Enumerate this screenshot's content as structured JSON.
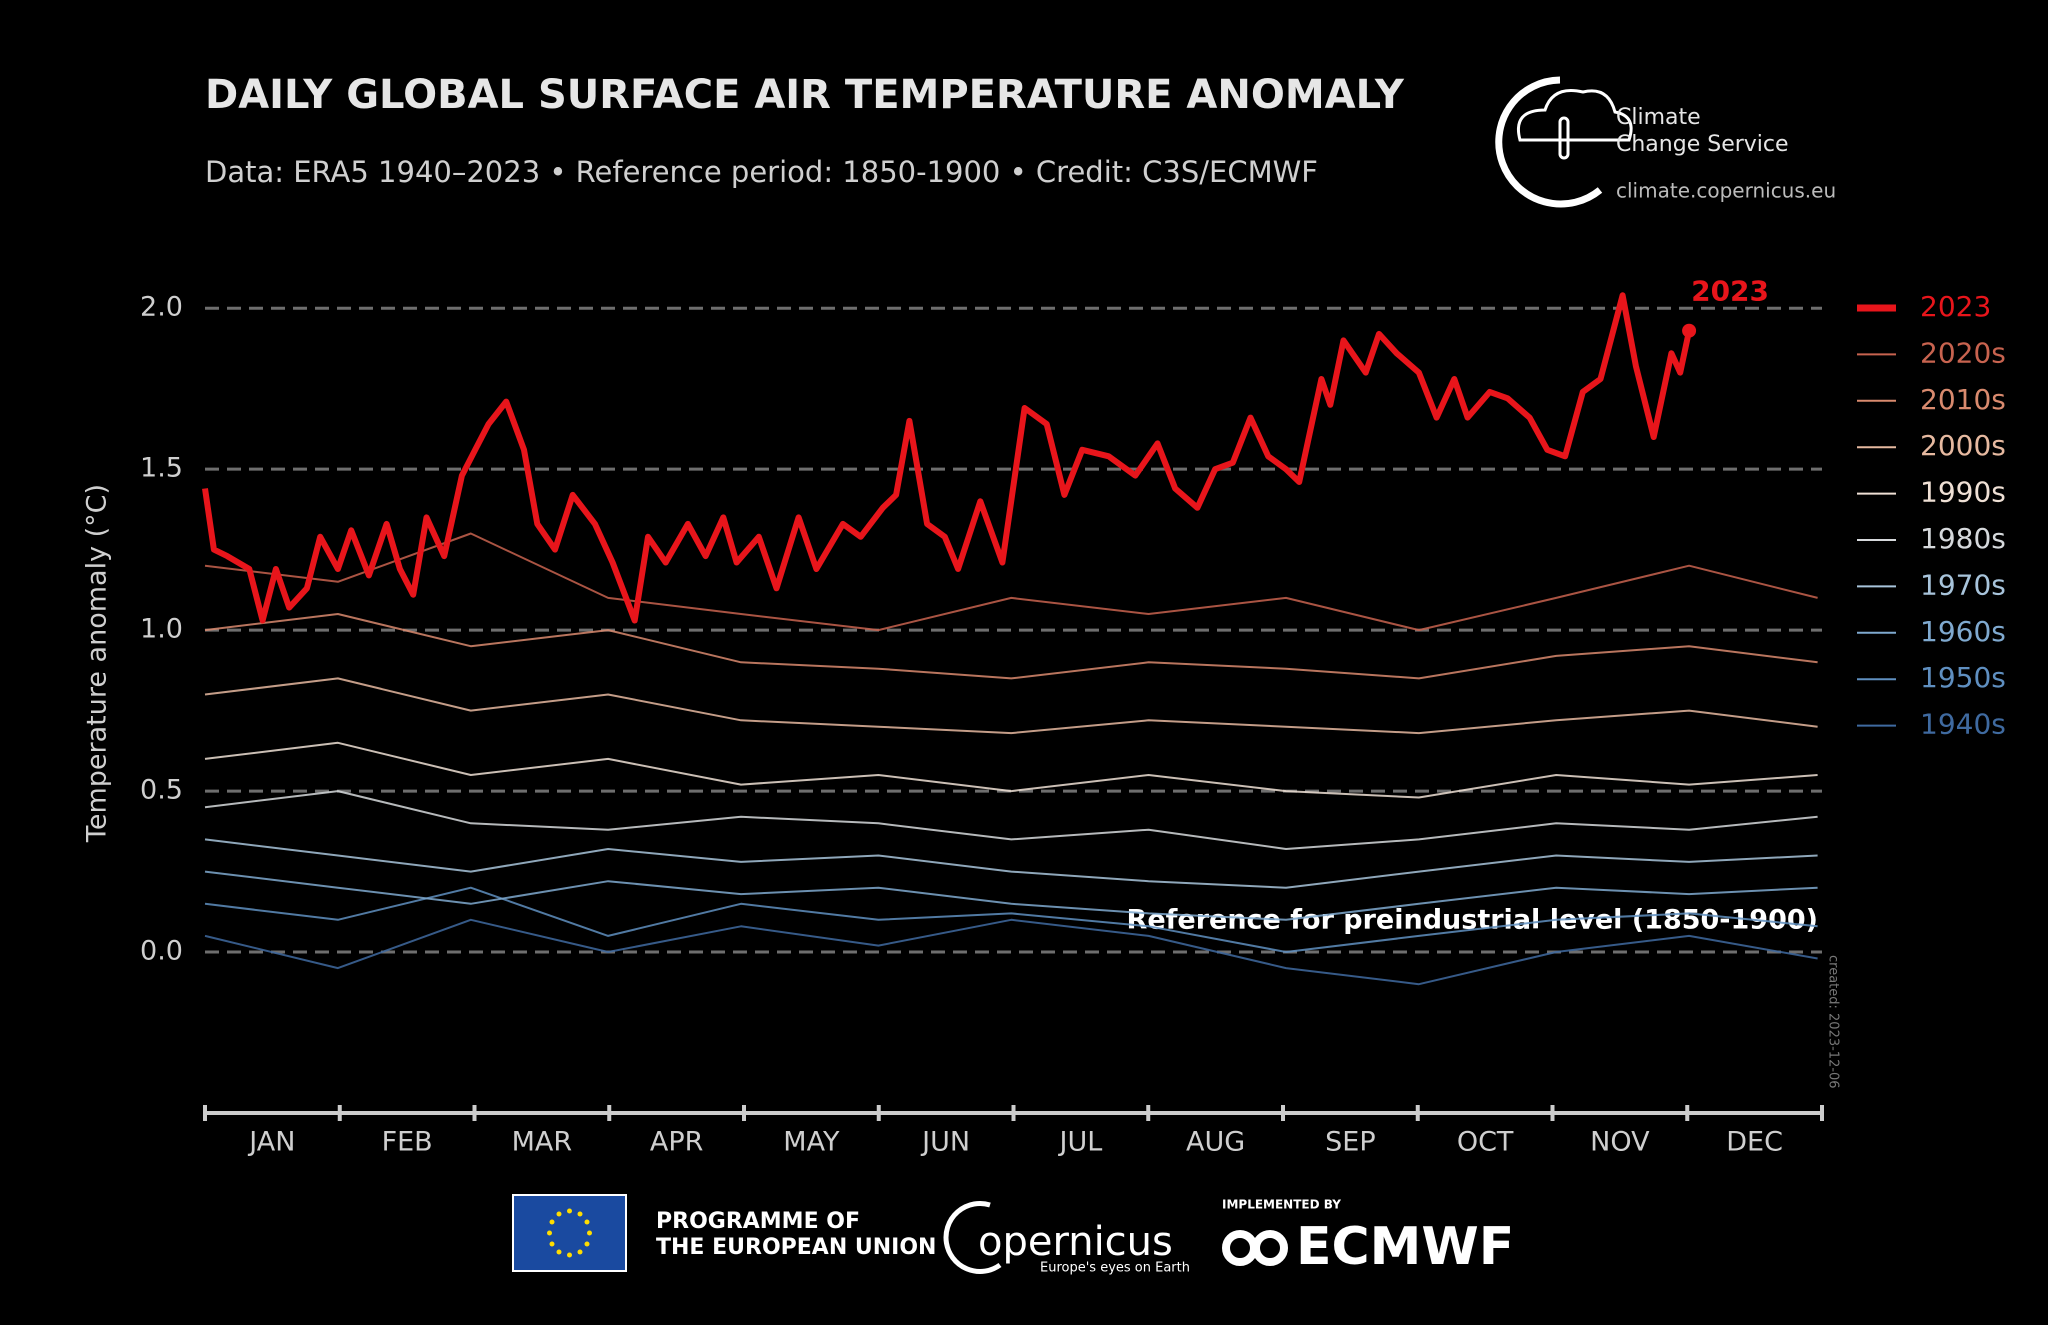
{
  "header": {
    "logo_line1": "Climate",
    "logo_line2": "Change Service",
    "logo_url": "climate.copernicus.eu"
  },
  "chart_data": {
    "type": "line",
    "title": "DAILY GLOBAL SURFACE AIR TEMPERATURE ANOMALY",
    "subtitle": "Data: ERA5 1940–2023 • Reference period: 1850-1900 • Credit: C3S/ECMWF",
    "y_label": "Temperature anomaly (°C)",
    "categories": [
      "JAN",
      "FEB",
      "MAR",
      "APR",
      "MAY",
      "JUN",
      "JUL",
      "AUG",
      "SEP",
      "OCT",
      "NOV",
      "DEC"
    ],
    "xlim": [
      0,
      365
    ],
    "ylim": [
      -0.5,
      2.1
    ],
    "yticks": [
      {
        "value": 0,
        "label": "0.0"
      },
      0.5,
      {
        "value": 1,
        "label": "1.0"
      },
      1.5,
      {
        "value": 2,
        "label": "2.0"
      }
    ],
    "grid": true,
    "legend": "right",
    "annotations": {
      "series_label": "2023",
      "reference": "Reference for preindustrial level (1850-1900)",
      "created": "created: 2023-12-06"
    },
    "series": [
      {
        "name": "2023",
        "color": "#e8151b",
        "x": [
          0,
          2,
          5,
          10,
          13,
          16,
          19,
          23,
          26,
          30,
          33,
          37,
          41,
          44,
          47,
          50,
          54,
          58,
          61,
          64,
          68,
          72,
          75,
          79,
          83,
          88,
          92,
          97,
          100,
          104,
          109,
          113,
          117,
          120,
          125,
          129,
          134,
          138,
          144,
          148,
          153,
          156,
          159,
          163,
          167,
          170,
          175,
          180,
          185,
          190,
          194,
          198,
          204,
          210,
          215,
          219,
          224,
          228,
          232,
          236,
          240,
          244,
          247,
          252,
          254,
          257,
          262,
          265,
          269,
          274,
          278,
          282,
          285,
          290,
          294,
          299,
          303,
          307,
          311,
          315,
          320,
          323,
          327,
          331,
          333,
          335
        ],
        "values": [
          1.44,
          1.25,
          1.23,
          1.19,
          1.03,
          1.19,
          1.07,
          1.13,
          1.29,
          1.19,
          1.31,
          1.17,
          1.33,
          1.19,
          1.11,
          1.35,
          1.23,
          1.48,
          1.56,
          1.64,
          1.71,
          1.56,
          1.33,
          1.25,
          1.42,
          1.33,
          1.21,
          1.03,
          1.29,
          1.21,
          1.33,
          1.23,
          1.35,
          1.21,
          1.29,
          1.13,
          1.35,
          1.19,
          1.33,
          1.29,
          1.38,
          1.42,
          1.65,
          1.33,
          1.29,
          1.19,
          1.4,
          1.21,
          1.69,
          1.64,
          1.42,
          1.56,
          1.54,
          1.48,
          1.58,
          1.44,
          1.38,
          1.5,
          1.52,
          1.66,
          1.54,
          1.5,
          1.46,
          1.78,
          1.7,
          1.9,
          1.8,
          1.92,
          1.86,
          1.8,
          1.66,
          1.78,
          1.66,
          1.74,
          1.72,
          1.66,
          1.56,
          1.54,
          1.74,
          1.78,
          2.04,
          1.82,
          1.6,
          1.86,
          1.8,
          1.93
        ]
      },
      {
        "name": "2020s",
        "color": "#c8634f",
        "x": [
          0,
          30,
          60,
          91,
          121,
          152,
          182,
          213,
          244,
          274,
          305,
          335,
          364
        ],
        "values": [
          1.2,
          1.15,
          1.3,
          1.1,
          1.05,
          1.0,
          1.1,
          1.05,
          1.1,
          1.0,
          1.1,
          1.2,
          1.1
        ]
      },
      {
        "name": "2010s",
        "color": "#d98a6e",
        "x": [
          0,
          30,
          60,
          91,
          121,
          152,
          182,
          213,
          244,
          274,
          305,
          335,
          364
        ],
        "values": [
          1.0,
          1.05,
          0.95,
          1.0,
          0.9,
          0.88,
          0.85,
          0.9,
          0.88,
          0.85,
          0.92,
          0.95,
          0.9
        ]
      },
      {
        "name": "2000s",
        "color": "#e6b9a0",
        "x": [
          0,
          30,
          60,
          91,
          121,
          152,
          182,
          213,
          244,
          274,
          305,
          335,
          364
        ],
        "values": [
          0.8,
          0.85,
          0.75,
          0.8,
          0.72,
          0.7,
          0.68,
          0.72,
          0.7,
          0.68,
          0.72,
          0.75,
          0.7
        ]
      },
      {
        "name": "1990s",
        "color": "#efe0d5",
        "x": [
          0,
          30,
          60,
          91,
          121,
          152,
          182,
          213,
          244,
          274,
          305,
          335,
          364
        ],
        "values": [
          0.6,
          0.65,
          0.55,
          0.6,
          0.52,
          0.55,
          0.5,
          0.55,
          0.5,
          0.48,
          0.55,
          0.52,
          0.55
        ]
      },
      {
        "name": "1980s",
        "color": "#d6d9dc",
        "x": [
          0,
          30,
          60,
          91,
          121,
          152,
          182,
          213,
          244,
          274,
          305,
          335,
          364
        ],
        "values": [
          0.45,
          0.5,
          0.4,
          0.38,
          0.42,
          0.4,
          0.35,
          0.38,
          0.32,
          0.35,
          0.4,
          0.38,
          0.42
        ]
      },
      {
        "name": "1970s",
        "color": "#a8c4db",
        "x": [
          0,
          30,
          60,
          91,
          121,
          152,
          182,
          213,
          244,
          274,
          305,
          335,
          364
        ],
        "values": [
          0.35,
          0.3,
          0.25,
          0.32,
          0.28,
          0.3,
          0.25,
          0.22,
          0.2,
          0.25,
          0.3,
          0.28,
          0.3
        ]
      },
      {
        "name": "1960s",
        "color": "#7fa9cf",
        "x": [
          0,
          30,
          60,
          91,
          121,
          152,
          182,
          213,
          244,
          274,
          305,
          335,
          364
        ],
        "values": [
          0.25,
          0.2,
          0.15,
          0.22,
          0.18,
          0.2,
          0.15,
          0.12,
          0.1,
          0.15,
          0.2,
          0.18,
          0.2
        ]
      },
      {
        "name": "1950s",
        "color": "#5f8fc0",
        "x": [
          0,
          30,
          60,
          91,
          121,
          152,
          182,
          213,
          244,
          274,
          305,
          335,
          364
        ],
        "values": [
          0.15,
          0.1,
          0.2,
          0.05,
          0.15,
          0.1,
          0.12,
          0.08,
          0.0,
          0.05,
          0.1,
          0.12,
          0.08
        ]
      },
      {
        "name": "1940s",
        "color": "#3f6aa0",
        "x": [
          0,
          30,
          60,
          91,
          121,
          152,
          182,
          213,
          244,
          274,
          305,
          335,
          364
        ],
        "values": [
          0.05,
          -0.05,
          0.1,
          0.0,
          0.08,
          0.02,
          0.1,
          0.05,
          -0.05,
          -0.1,
          0.0,
          0.05,
          -0.02
        ]
      }
    ]
  },
  "footer": {
    "eu_line1": "PROGRAMME OF",
    "eu_line2": "THE EUROPEAN UNION",
    "copernicus": "opernicus",
    "copernicus_tagline": "Europe's eyes on Earth",
    "implemented": "IMPLEMENTED BY",
    "ecmwf": "ECMWF"
  }
}
